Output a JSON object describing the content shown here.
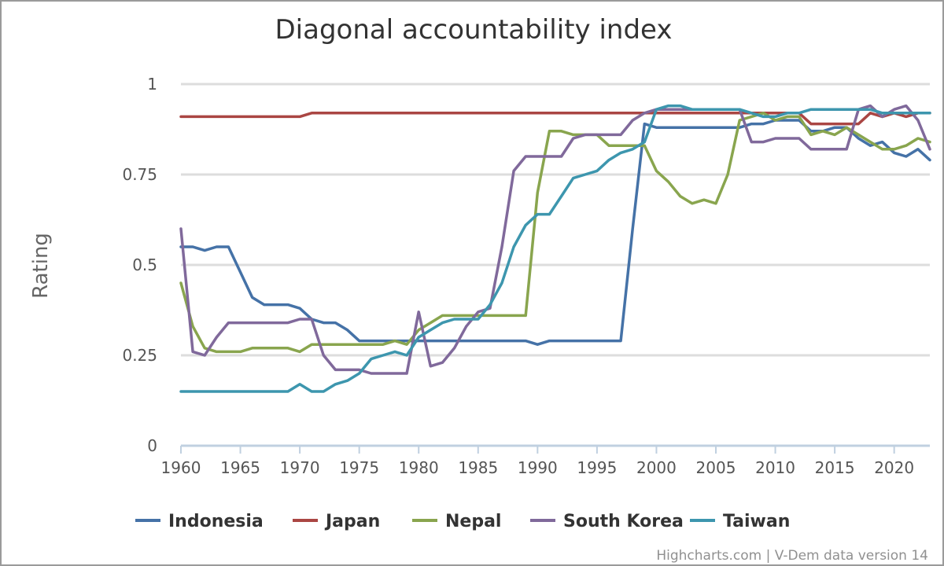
{
  "chart_data": {
    "type": "line",
    "title": "Diagonal accountability index",
    "ylabel": "Rating",
    "xlabel": "",
    "xlim": [
      1960,
      2023
    ],
    "ylim": [
      0,
      1
    ],
    "x_ticks": [
      1960,
      1965,
      1970,
      1975,
      1980,
      1985,
      1990,
      1995,
      2000,
      2005,
      2010,
      2015,
      2020
    ],
    "y_ticks": [
      0,
      0.25,
      0.5,
      0.75,
      1
    ],
    "y_tick_labels": [
      "0",
      "0.25",
      "0.5",
      "0.75",
      "1"
    ],
    "grid": true,
    "legend_position": "bottom",
    "credits": "Highcharts.com | V-Dem data version 14",
    "x": [
      1960,
      1961,
      1962,
      1963,
      1964,
      1965,
      1966,
      1967,
      1968,
      1969,
      1970,
      1971,
      1972,
      1973,
      1974,
      1975,
      1976,
      1977,
      1978,
      1979,
      1980,
      1981,
      1982,
      1983,
      1984,
      1985,
      1986,
      1987,
      1988,
      1989,
      1990,
      1991,
      1992,
      1993,
      1994,
      1995,
      1996,
      1997,
      1998,
      1999,
      2000,
      2001,
      2002,
      2003,
      2004,
      2005,
      2006,
      2007,
      2008,
      2009,
      2010,
      2011,
      2012,
      2013,
      2014,
      2015,
      2016,
      2017,
      2018,
      2019,
      2020,
      2021,
      2022,
      2023
    ],
    "series": [
      {
        "name": "Indonesia",
        "color": "#4572a7",
        "values": [
          0.55,
          0.55,
          0.54,
          0.55,
          0.55,
          0.48,
          0.41,
          0.39,
          0.39,
          0.39,
          0.38,
          0.35,
          0.34,
          0.34,
          0.32,
          0.29,
          0.29,
          0.29,
          0.29,
          0.29,
          0.29,
          0.29,
          0.29,
          0.29,
          0.29,
          0.29,
          0.29,
          0.29,
          0.29,
          0.29,
          0.28,
          0.29,
          0.29,
          0.29,
          0.29,
          0.29,
          0.29,
          0.29,
          0.6,
          0.89,
          0.88,
          0.88,
          0.88,
          0.88,
          0.88,
          0.88,
          0.88,
          0.88,
          0.89,
          0.89,
          0.9,
          0.9,
          0.9,
          0.87,
          0.87,
          0.88,
          0.88,
          0.85,
          0.83,
          0.84,
          0.81,
          0.8,
          0.82,
          0.79
        ]
      },
      {
        "name": "Japan",
        "color": "#aa4643",
        "values": [
          0.91,
          0.91,
          0.91,
          0.91,
          0.91,
          0.91,
          0.91,
          0.91,
          0.91,
          0.91,
          0.91,
          0.92,
          0.92,
          0.92,
          0.92,
          0.92,
          0.92,
          0.92,
          0.92,
          0.92,
          0.92,
          0.92,
          0.92,
          0.92,
          0.92,
          0.92,
          0.92,
          0.92,
          0.92,
          0.92,
          0.92,
          0.92,
          0.92,
          0.92,
          0.92,
          0.92,
          0.92,
          0.92,
          0.92,
          0.92,
          0.92,
          0.92,
          0.92,
          0.92,
          0.92,
          0.92,
          0.92,
          0.92,
          0.92,
          0.92,
          0.92,
          0.92,
          0.92,
          0.89,
          0.89,
          0.89,
          0.89,
          0.89,
          0.92,
          0.91,
          0.92,
          0.91,
          0.92,
          0.92
        ]
      },
      {
        "name": "Nepal",
        "color": "#89a54e",
        "values": [
          0.45,
          0.33,
          0.27,
          0.26,
          0.26,
          0.26,
          0.27,
          0.27,
          0.27,
          0.27,
          0.26,
          0.28,
          0.28,
          0.28,
          0.28,
          0.28,
          0.28,
          0.28,
          0.29,
          0.28,
          0.32,
          0.34,
          0.36,
          0.36,
          0.36,
          0.36,
          0.36,
          0.36,
          0.36,
          0.36,
          0.7,
          0.87,
          0.87,
          0.86,
          0.86,
          0.86,
          0.83,
          0.83,
          0.83,
          0.83,
          0.76,
          0.73,
          0.69,
          0.67,
          0.68,
          0.67,
          0.75,
          0.9,
          0.91,
          0.92,
          0.9,
          0.91,
          0.91,
          0.86,
          0.87,
          0.86,
          0.88,
          0.86,
          0.84,
          0.82,
          0.82,
          0.83,
          0.85,
          0.84
        ]
      },
      {
        "name": "South Korea",
        "color": "#80699b",
        "values": [
          0.6,
          0.26,
          0.25,
          0.3,
          0.34,
          0.34,
          0.34,
          0.34,
          0.34,
          0.34,
          0.35,
          0.35,
          0.25,
          0.21,
          0.21,
          0.21,
          0.2,
          0.2,
          0.2,
          0.2,
          0.37,
          0.22,
          0.23,
          0.27,
          0.33,
          0.37,
          0.38,
          0.55,
          0.76,
          0.8,
          0.8,
          0.8,
          0.8,
          0.85,
          0.86,
          0.86,
          0.86,
          0.86,
          0.9,
          0.92,
          0.93,
          0.93,
          0.93,
          0.93,
          0.93,
          0.93,
          0.93,
          0.93,
          0.84,
          0.84,
          0.85,
          0.85,
          0.85,
          0.82,
          0.82,
          0.82,
          0.82,
          0.93,
          0.94,
          0.91,
          0.93,
          0.94,
          0.9,
          0.82
        ]
      },
      {
        "name": "Taiwan",
        "color": "#3d96ae",
        "values": [
          0.15,
          0.15,
          0.15,
          0.15,
          0.15,
          0.15,
          0.15,
          0.15,
          0.15,
          0.15,
          0.17,
          0.15,
          0.15,
          0.17,
          0.18,
          0.2,
          0.24,
          0.25,
          0.26,
          0.25,
          0.3,
          0.32,
          0.34,
          0.35,
          0.35,
          0.35,
          0.39,
          0.45,
          0.55,
          0.61,
          0.64,
          0.64,
          0.69,
          0.74,
          0.75,
          0.76,
          0.79,
          0.81,
          0.82,
          0.84,
          0.93,
          0.94,
          0.94,
          0.93,
          0.93,
          0.93,
          0.93,
          0.93,
          0.92,
          0.91,
          0.91,
          0.92,
          0.92,
          0.93,
          0.93,
          0.93,
          0.93,
          0.93,
          0.93,
          0.92,
          0.92,
          0.92,
          0.92,
          0.92
        ]
      }
    ]
  }
}
